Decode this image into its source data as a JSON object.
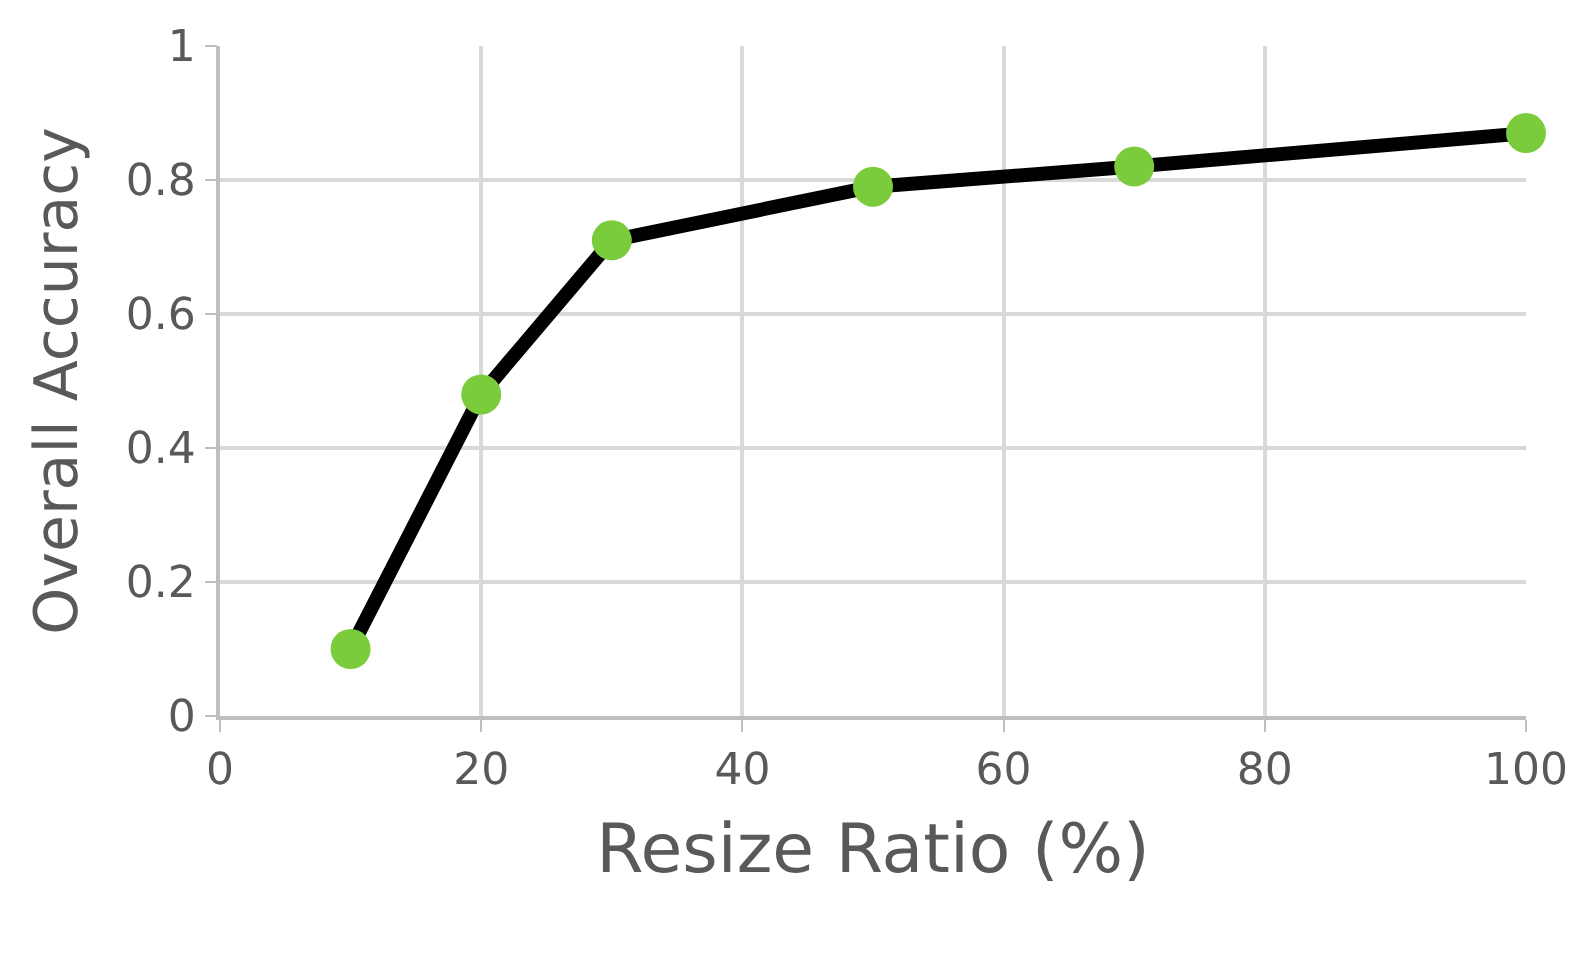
{
  "chart_data": {
    "type": "line",
    "xlabel": "Resize Ratio (%)",
    "ylabel": "Overall Accuracy",
    "x": [
      10,
      20,
      30,
      50,
      70,
      100
    ],
    "series": [
      {
        "color": "#000000",
        "colors": [
          "#7acc3c",
          "#7acc3c",
          "#7acc3c",
          "#7acc3c",
          "#7acc3c",
          "#7acc3c"
        ],
        "values": [
          0.1,
          0.48,
          0.71,
          0.79,
          0.82,
          0.87
        ]
      }
    ],
    "xlim": [
      0,
      100
    ],
    "xticks": [
      0,
      20,
      40,
      60,
      80,
      100
    ],
    "ylim": [
      0,
      1
    ],
    "yticks": [
      0,
      0.2,
      0.4,
      0.6,
      0.8,
      1
    ],
    "grid": true,
    "marker": "circle",
    "line_style": "solid"
  }
}
